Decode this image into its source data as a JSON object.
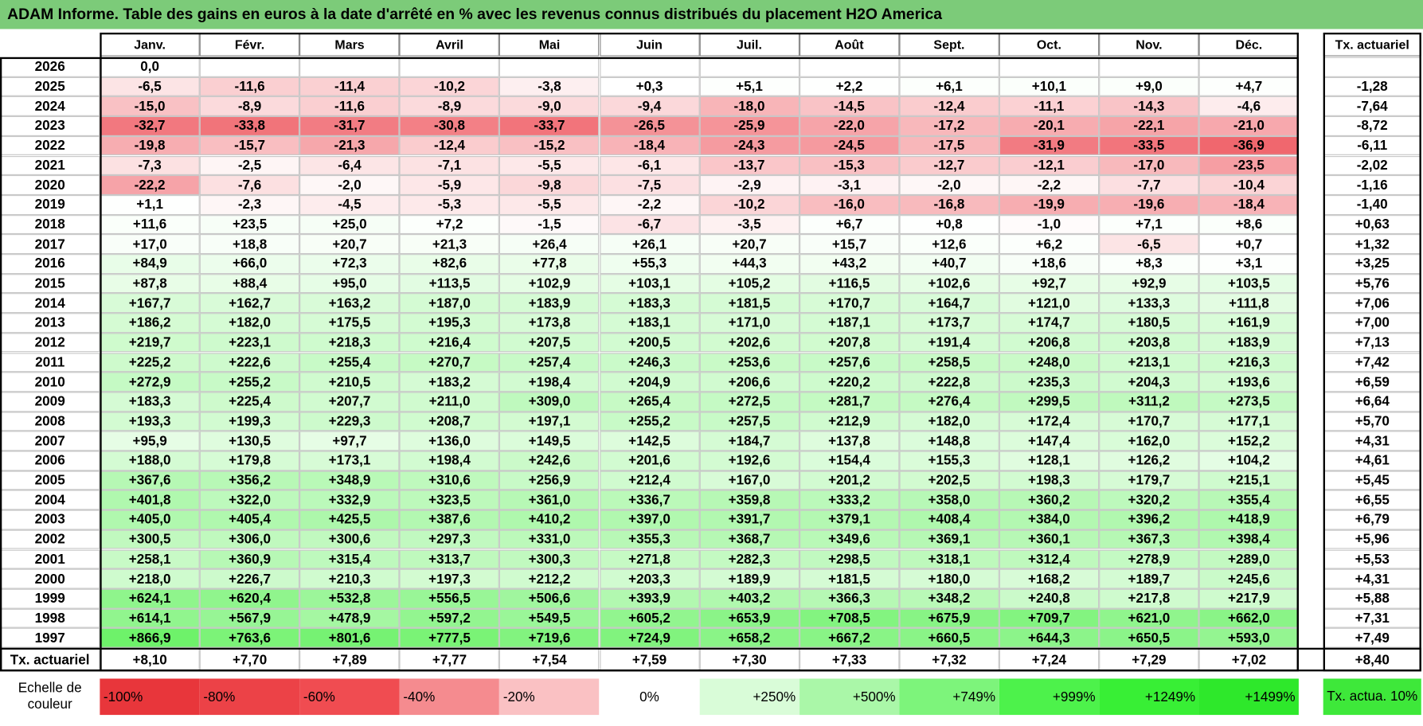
{
  "header": {
    "title": "ADAM Informe. Table des gains en euros à la date d'arrêté en % avec les revenus connus distribués du placement H2O America"
  },
  "table": {
    "columns": [
      "Janv.",
      "Févr.",
      "Mars",
      "Avril",
      "Mai",
      "Juin",
      "Juil.",
      "Août",
      "Sept.",
      "Oct.",
      "Nov.",
      "Déc."
    ],
    "total_column": "Tx. actuariel",
    "rows": [
      {
        "year": "2026",
        "values": [
          "0,0"
        ]
      },
      {
        "year": "2025",
        "values": [
          "-6,5",
          "-11,6",
          "-11,4",
          "-10,2",
          "-3,8",
          "+0,3",
          "+5,1",
          "+2,2",
          "+6,1",
          "+10,1",
          "+9,0",
          "+4,7"
        ],
        "total": "-1,28"
      },
      {
        "year": "2024",
        "values": [
          "-15,0",
          "-8,9",
          "-11,6",
          "-8,9",
          "-9,0",
          "-9,4",
          "-18,0",
          "-14,5",
          "-12,4",
          "-11,1",
          "-14,3",
          "-4,6"
        ],
        "total": "-7,64"
      },
      {
        "year": "2023",
        "values": [
          "-32,7",
          "-33,8",
          "-31,7",
          "-30,8",
          "-33,7",
          "-26,5",
          "-25,9",
          "-22,0",
          "-17,2",
          "-20,1",
          "-22,1",
          "-21,0"
        ],
        "total": "-8,72"
      },
      {
        "year": "2022",
        "values": [
          "-19,8",
          "-15,7",
          "-21,3",
          "-12,4",
          "-15,2",
          "-18,4",
          "-24,3",
          "-24,5",
          "-17,5",
          "-31,9",
          "-33,5",
          "-36,9"
        ],
        "total": "-6,11"
      },
      {
        "year": "2021",
        "values": [
          "-7,3",
          "-2,5",
          "-6,4",
          "-7,1",
          "-5,5",
          "-6,1",
          "-13,7",
          "-15,3",
          "-12,7",
          "-12,1",
          "-17,0",
          "-23,5"
        ],
        "total": "-2,02"
      },
      {
        "year": "2020",
        "values": [
          "-22,2",
          "-7,6",
          "-2,0",
          "-5,9",
          "-9,8",
          "-7,5",
          "-2,9",
          "-3,1",
          "-2,0",
          "-2,2",
          "-7,7",
          "-10,4"
        ],
        "total": "-1,16"
      },
      {
        "year": "2019",
        "values": [
          "+1,1",
          "-2,3",
          "-4,5",
          "-5,3",
          "-5,5",
          "-2,2",
          "-10,2",
          "-16,0",
          "-16,8",
          "-19,9",
          "-19,6",
          "-18,4"
        ],
        "total": "-1,40"
      },
      {
        "year": "2018",
        "values": [
          "+11,6",
          "+23,5",
          "+25,0",
          "+7,2",
          "-1,5",
          "-6,7",
          "-3,5",
          "+6,7",
          "+0,8",
          "-1,0",
          "+7,1",
          "+8,6"
        ],
        "total": "+0,63"
      },
      {
        "year": "2017",
        "values": [
          "+17,0",
          "+18,8",
          "+20,7",
          "+21,3",
          "+26,4",
          "+26,1",
          "+20,7",
          "+15,7",
          "+12,6",
          "+6,2",
          "-6,5",
          "+0,7"
        ],
        "total": "+1,32"
      },
      {
        "year": "2016",
        "values": [
          "+84,9",
          "+66,0",
          "+72,3",
          "+82,6",
          "+77,8",
          "+55,3",
          "+44,3",
          "+43,2",
          "+40,7",
          "+18,6",
          "+8,3",
          "+3,1"
        ],
        "total": "+3,25"
      },
      {
        "year": "2015",
        "values": [
          "+87,8",
          "+88,4",
          "+95,0",
          "+113,5",
          "+102,9",
          "+103,1",
          "+105,2",
          "+116,5",
          "+102,6",
          "+92,7",
          "+92,9",
          "+103,5"
        ],
        "total": "+5,76"
      },
      {
        "year": "2014",
        "values": [
          "+167,7",
          "+162,7",
          "+163,2",
          "+187,0",
          "+183,9",
          "+183,3",
          "+181,5",
          "+170,7",
          "+164,7",
          "+121,0",
          "+133,3",
          "+111,8"
        ],
        "total": "+7,06"
      },
      {
        "year": "2013",
        "values": [
          "+186,2",
          "+182,0",
          "+175,5",
          "+195,3",
          "+173,8",
          "+183,1",
          "+171,0",
          "+187,1",
          "+173,7",
          "+174,7",
          "+180,5",
          "+161,9"
        ],
        "total": "+7,00"
      },
      {
        "year": "2012",
        "values": [
          "+219,7",
          "+223,1",
          "+218,3",
          "+216,4",
          "+207,5",
          "+200,5",
          "+202,6",
          "+207,8",
          "+191,4",
          "+206,8",
          "+203,8",
          "+183,9"
        ],
        "total": "+7,13"
      },
      {
        "year": "2011",
        "values": [
          "+225,2",
          "+222,6",
          "+255,4",
          "+270,7",
          "+257,4",
          "+246,3",
          "+253,6",
          "+257,6",
          "+258,5",
          "+248,0",
          "+213,1",
          "+216,3"
        ],
        "total": "+7,42"
      },
      {
        "year": "2010",
        "values": [
          "+272,9",
          "+255,2",
          "+210,5",
          "+183,2",
          "+198,4",
          "+204,9",
          "+206,6",
          "+220,2",
          "+222,8",
          "+235,3",
          "+204,3",
          "+193,6"
        ],
        "total": "+6,59"
      },
      {
        "year": "2009",
        "values": [
          "+183,3",
          "+225,4",
          "+207,7",
          "+211,0",
          "+309,0",
          "+265,4",
          "+272,5",
          "+281,7",
          "+276,4",
          "+299,5",
          "+311,2",
          "+273,5"
        ],
        "total": "+6,64"
      },
      {
        "year": "2008",
        "values": [
          "+193,3",
          "+199,3",
          "+229,3",
          "+208,7",
          "+197,1",
          "+255,2",
          "+257,5",
          "+212,9",
          "+182,0",
          "+172,4",
          "+170,7",
          "+177,1"
        ],
        "total": "+5,70"
      },
      {
        "year": "2007",
        "values": [
          "+95,9",
          "+130,5",
          "+97,7",
          "+136,0",
          "+149,5",
          "+142,5",
          "+184,7",
          "+137,8",
          "+148,8",
          "+147,4",
          "+162,0",
          "+152,2"
        ],
        "total": "+4,31"
      },
      {
        "year": "2006",
        "values": [
          "+188,0",
          "+179,8",
          "+173,1",
          "+198,4",
          "+242,6",
          "+201,6",
          "+192,6",
          "+154,4",
          "+155,3",
          "+128,1",
          "+126,2",
          "+104,2"
        ],
        "total": "+4,61"
      },
      {
        "year": "2005",
        "values": [
          "+367,6",
          "+356,2",
          "+348,9",
          "+310,6",
          "+256,9",
          "+212,4",
          "+167,0",
          "+201,2",
          "+202,5",
          "+198,3",
          "+179,7",
          "+215,1"
        ],
        "total": "+5,45"
      },
      {
        "year": "2004",
        "values": [
          "+401,8",
          "+322,0",
          "+332,9",
          "+323,5",
          "+361,0",
          "+336,7",
          "+359,8",
          "+333,2",
          "+358,0",
          "+360,2",
          "+320,2",
          "+355,4"
        ],
        "total": "+6,55"
      },
      {
        "year": "2003",
        "values": [
          "+405,0",
          "+405,4",
          "+425,5",
          "+387,6",
          "+410,2",
          "+397,0",
          "+391,7",
          "+379,1",
          "+408,4",
          "+384,0",
          "+396,2",
          "+418,9"
        ],
        "total": "+6,79"
      },
      {
        "year": "2002",
        "values": [
          "+300,5",
          "+306,0",
          "+300,6",
          "+297,3",
          "+331,0",
          "+355,3",
          "+368,7",
          "+349,6",
          "+369,1",
          "+360,1",
          "+367,3",
          "+398,4"
        ],
        "total": "+5,96"
      },
      {
        "year": "2001",
        "values": [
          "+258,1",
          "+360,9",
          "+315,4",
          "+313,7",
          "+300,3",
          "+271,8",
          "+282,3",
          "+298,5",
          "+318,1",
          "+312,4",
          "+278,9",
          "+289,0"
        ],
        "total": "+5,53"
      },
      {
        "year": "2000",
        "values": [
          "+218,0",
          "+226,7",
          "+210,3",
          "+197,3",
          "+212,2",
          "+203,3",
          "+189,9",
          "+181,5",
          "+180,0",
          "+168,2",
          "+189,7",
          "+245,6"
        ],
        "total": "+4,31"
      },
      {
        "year": "1999",
        "values": [
          "+624,1",
          "+620,4",
          "+532,8",
          "+556,5",
          "+506,6",
          "+393,9",
          "+403,2",
          "+366,3",
          "+348,2",
          "+240,8",
          "+217,8",
          "+217,9"
        ],
        "total": "+5,88"
      },
      {
        "year": "1998",
        "values": [
          "+614,1",
          "+567,9",
          "+478,9",
          "+597,2",
          "+549,5",
          "+605,2",
          "+653,9",
          "+708,5",
          "+675,9",
          "+709,7",
          "+621,0",
          "+662,0"
        ],
        "total": "+7,31"
      },
      {
        "year": "1997",
        "values": [
          "+866,9",
          "+763,6",
          "+801,6",
          "+777,5",
          "+719,6",
          "+724,9",
          "+658,2",
          "+667,2",
          "+660,5",
          "+644,3",
          "+650,5",
          "+593,0"
        ],
        "total": "+7,49"
      }
    ],
    "footer": {
      "label": "Tx. actuariel",
      "values": [
        "+8,10",
        "+7,70",
        "+7,89",
        "+7,77",
        "+7,54",
        "+7,59",
        "+7,30",
        "+7,33",
        "+7,32",
        "+7,24",
        "+7,29",
        "+7,02"
      ],
      "total": "+8,40"
    }
  },
  "legend": {
    "label": "Echelle de couleur",
    "items": [
      {
        "label": "-100%",
        "color": "#e8363b"
      },
      {
        "label": "-80%",
        "color": "#ec4247"
      },
      {
        "label": "-60%",
        "color": "#f04c51"
      },
      {
        "label": "-40%",
        "color": "#f58b8f"
      },
      {
        "label": "-20%",
        "color": "#fac1c3"
      },
      {
        "label": "0%",
        "color": "#ffffff"
      },
      {
        "label": "+250%",
        "color": "#d9fcd8"
      },
      {
        "label": "+500%",
        "color": "#aaf7a8"
      },
      {
        "label": "+749%",
        "color": "#7df47b"
      },
      {
        "label": "+999%",
        "color": "#4df24b"
      },
      {
        "label": "+1249%",
        "color": "#38ef35"
      },
      {
        "label": "+1499%",
        "color": "#2ee82b"
      }
    ],
    "total": {
      "label": "Tx. actua. 10%",
      "color": "#3ee83a"
    }
  }
}
